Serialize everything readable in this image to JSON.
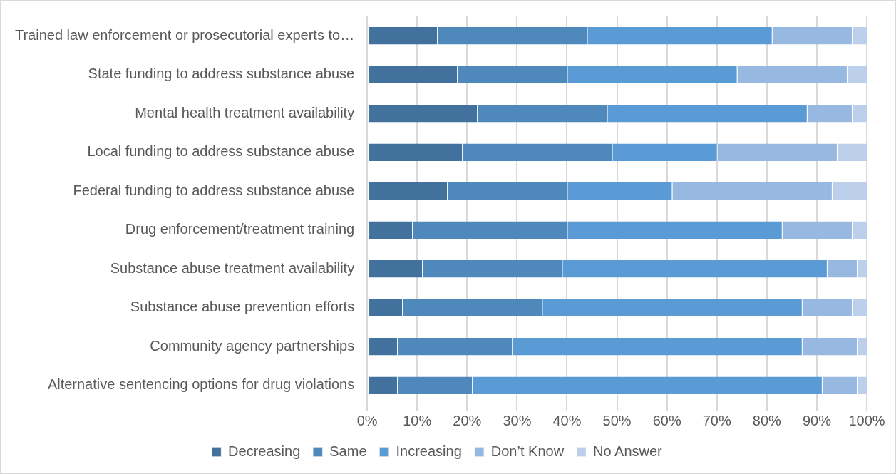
{
  "chart_data": {
    "type": "bar",
    "orientation": "horizontal",
    "stacked": true,
    "categories": [
      "Trained law enforcement or prosecutorial experts to…",
      "State funding to address substance abuse",
      "Mental health treatment availability",
      "Local funding to address substance abuse",
      "Federal funding to address substance abuse",
      "Drug enforcement/treatment training",
      "Substance abuse treatment availability",
      "Substance abuse prevention efforts",
      "Community agency partnerships",
      "Alternative sentencing options for drug violations"
    ],
    "series": [
      {
        "name": "Decreasing",
        "color": "#41719c",
        "values": [
          14,
          18,
          22,
          19,
          16,
          9,
          11,
          7,
          6,
          6
        ]
      },
      {
        "name": "Same",
        "color": "#4f88bb",
        "values": [
          30,
          22,
          26,
          30,
          24,
          31,
          28,
          28,
          23,
          15
        ]
      },
      {
        "name": "Increasing",
        "color": "#5b9bd5",
        "values": [
          37,
          34,
          40,
          21,
          21,
          43,
          53,
          52,
          58,
          70
        ]
      },
      {
        "name": "Don’t Know",
        "color": "#97b8e0",
        "values": [
          16,
          22,
          9,
          24,
          32,
          14,
          6,
          10,
          11,
          7
        ]
      },
      {
        "name": "No Answer",
        "color": "#bdd0eb",
        "values": [
          3,
          4,
          3,
          6,
          7,
          3,
          2,
          3,
          2,
          2
        ]
      }
    ],
    "xlim": [
      0,
      100
    ],
    "xticks": [
      {
        "value": 0,
        "label": "0%"
      },
      {
        "value": 10,
        "label": "10%"
      },
      {
        "value": 20,
        "label": "20%"
      },
      {
        "value": 30,
        "label": "30%"
      },
      {
        "value": 40,
        "label": "40%"
      },
      {
        "value": 50,
        "label": "50%"
      },
      {
        "value": 60,
        "label": "60%"
      },
      {
        "value": 70,
        "label": "70%"
      },
      {
        "value": 80,
        "label": "80%"
      },
      {
        "value": 90,
        "label": "90%"
      },
      {
        "value": 100,
        "label": "100%"
      }
    ],
    "grid": "x",
    "legend": "bottom"
  }
}
